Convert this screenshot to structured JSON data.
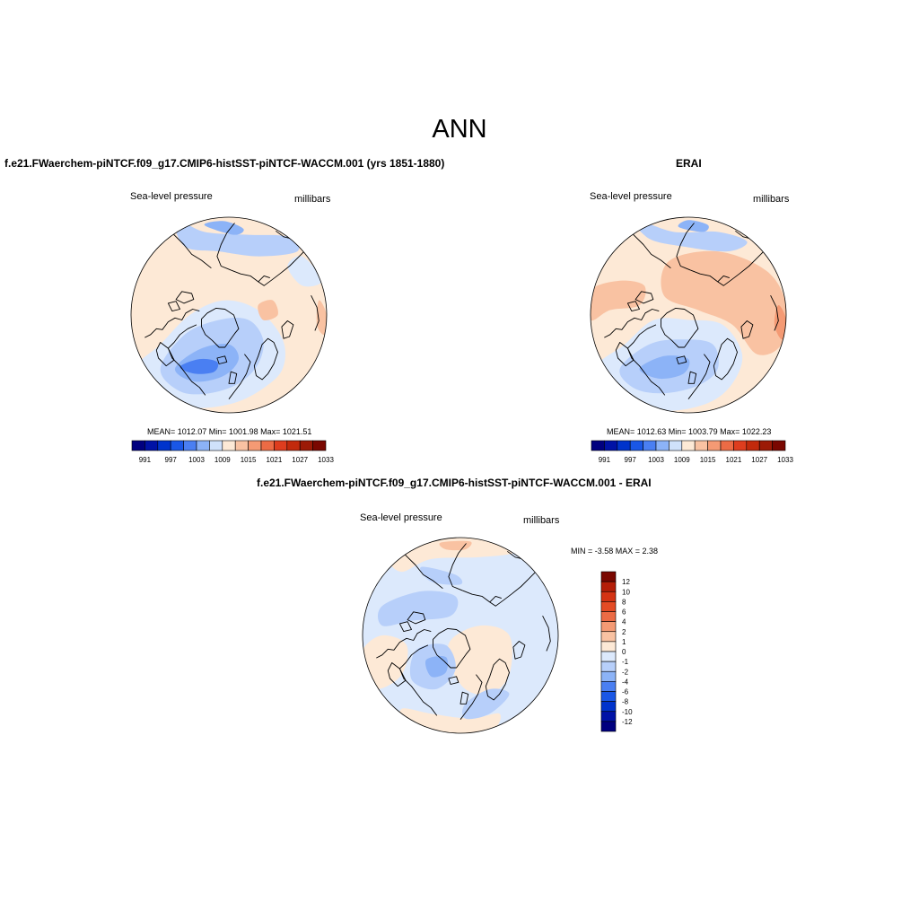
{
  "title": "ANN",
  "colors": {
    "levels15": [
      "#00007f",
      "#0012a6",
      "#0033cc",
      "#1a57e6",
      "#4a7ff2",
      "#8cb3f7",
      "#cfe1fb",
      "#fde9d6",
      "#f9c2a2",
      "#f49a74",
      "#ec6b45",
      "#de3d1e",
      "#c22a0c",
      "#9c1a06",
      "#7a0700"
    ],
    "levels16": [
      "#00007f",
      "#0012a6",
      "#0033cc",
      "#1a57e6",
      "#4a7ff2",
      "#8cb3f7",
      "#b7cffa",
      "#dce9fc",
      "#fde9d6",
      "#f9c2a2",
      "#f49a74",
      "#ec6b45",
      "#e44b25",
      "#d43314",
      "#b41e08",
      "#7a0700"
    ],
    "coast": "#000000"
  },
  "panels": [
    {
      "title": "f.e21.FWaerchem-piNTCF.f09_g17.CMIP6-histSST-piNTCF-WACCM.001 (yrs 1851-1880)",
      "left_label": "Sea-level pressure",
      "right_label": "millibars",
      "stats": "MEAN= 1012.07   Min= 1001.98   Max= 1021.51"
    },
    {
      "title": "ERAI",
      "left_label": "Sea-level pressure",
      "right_label": "millibars",
      "stats": "MEAN= 1012.63   Min= 1003.79   Max= 1022.23"
    },
    {
      "title": "f.e21.FWaerchem-piNTCF.f09_g17.CMIP6-histSST-piNTCF-WACCM.001 - ERAI",
      "left_label": "Sea-level pressure",
      "right_label": "millibars",
      "stats": "MIN =  -3.58 MAX =   2.38"
    }
  ],
  "chart_data": [
    {
      "type": "heatmap",
      "projection": "north polar stereographic",
      "title": "f.e21.FWaerchem-piNTCF.f09_g17.CMIP6-histSST-piNTCF-WACCM.001 (yrs 1851-1880)",
      "variable": "Sea-level pressure",
      "units": "millibars",
      "mean": 1012.07,
      "min": 1001.98,
      "max": 1021.51,
      "colorbar_levels": [
        991,
        994,
        997,
        1000,
        1003,
        1006,
        1009,
        1012,
        1015,
        1018,
        1021,
        1024,
        1027,
        1030,
        1033
      ],
      "colorbar_labels": [
        "991",
        "997",
        "1003",
        "1009",
        "1015",
        "1021",
        "1027",
        "1033"
      ]
    },
    {
      "type": "heatmap",
      "projection": "north polar stereographic",
      "title": "ERAI",
      "variable": "Sea-level pressure",
      "units": "millibars",
      "mean": 1012.63,
      "min": 1003.79,
      "max": 1022.23,
      "colorbar_levels": [
        991,
        994,
        997,
        1000,
        1003,
        1006,
        1009,
        1012,
        1015,
        1018,
        1021,
        1024,
        1027,
        1030,
        1033
      ],
      "colorbar_labels": [
        "991",
        "997",
        "1003",
        "1009",
        "1015",
        "1021",
        "1027",
        "1033"
      ]
    },
    {
      "type": "heatmap",
      "projection": "north polar stereographic",
      "title": "f.e21.FWaerchem-piNTCF.f09_g17.CMIP6-histSST-piNTCF-WACCM.001 - ERAI",
      "variable": "Sea-level pressure",
      "units": "millibars",
      "min": -3.58,
      "max": 2.38,
      "colorbar_levels": [
        -12,
        -10,
        -8,
        -6,
        -4,
        -2,
        -1,
        0,
        1,
        2,
        4,
        6,
        8,
        10,
        12
      ],
      "colorbar_labels": [
        "12",
        "10",
        "8",
        "6",
        "4",
        "2",
        "1",
        "0",
        "-1",
        "-2",
        "-4",
        "-6",
        "-8",
        "-10",
        "-12"
      ]
    }
  ]
}
